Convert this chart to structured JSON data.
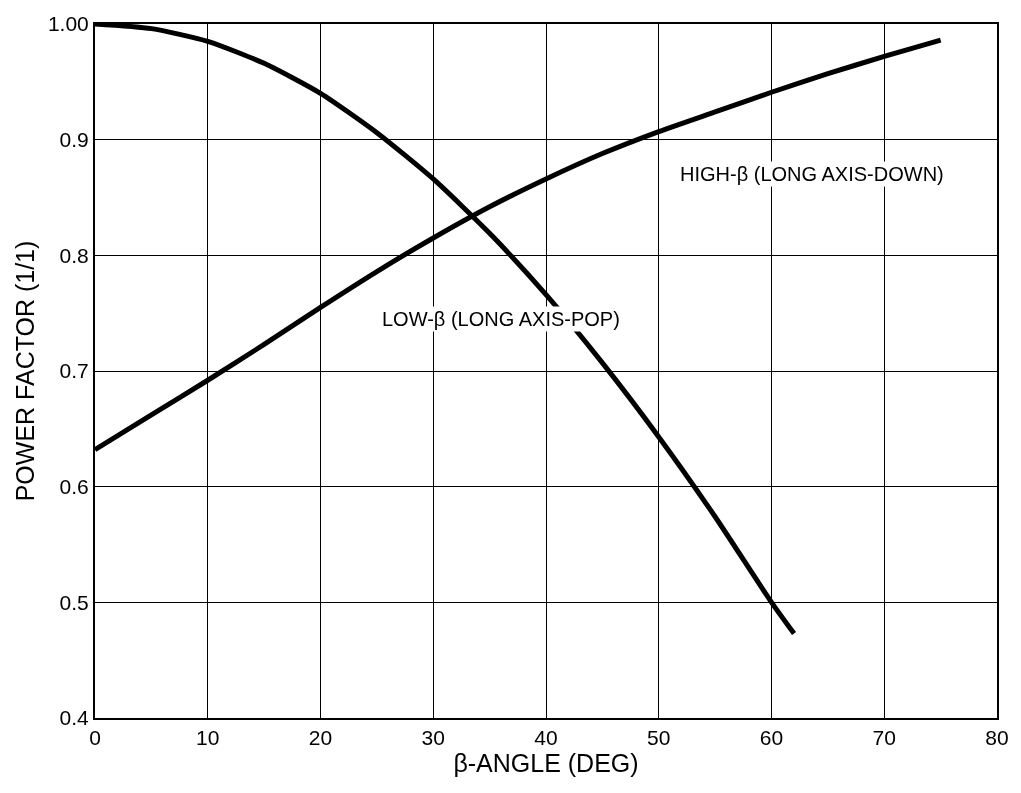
{
  "chart_data": {
    "type": "line",
    "xlabel": "β-ANGLE (DEG)",
    "ylabel": "POWER FACTOR (1/1)",
    "xlim": [
      0,
      80
    ],
    "xticks": [
      0,
      10,
      20,
      30,
      40,
      50,
      60,
      70,
      80
    ],
    "ylim": [
      0.4,
      1.0
    ],
    "yticks": [
      0.4,
      0.5,
      0.6,
      0.7,
      0.8,
      0.9,
      {
        "value": 1.0,
        "label": "1.00"
      }
    ],
    "grid": true,
    "marker": "none",
    "line_style": "solid",
    "series": [
      {
        "name": "LOW-β (LONG AXIS-POP)",
        "color": "#000000",
        "x": [
          0,
          5,
          10,
          15,
          20,
          25,
          30,
          35,
          40,
          45,
          50,
          55,
          60,
          62
        ],
        "values": [
          1.0,
          0.996,
          0.985,
          0.966,
          0.94,
          0.906,
          0.866,
          0.819,
          0.766,
          0.707,
          0.643,
          0.574,
          0.5,
          0.473
        ]
      },
      {
        "name": "HIGH-β (LONG AXIS-DOWN)",
        "color": "#000000",
        "x": [
          0,
          5,
          10,
          15,
          20,
          25,
          30,
          35,
          40,
          45,
          50,
          55,
          60,
          65,
          70,
          75
        ],
        "values": [
          0.632,
          0.662,
          0.692,
          0.723,
          0.755,
          0.786,
          0.815,
          0.842,
          0.866,
          0.888,
          0.907,
          0.924,
          0.941,
          0.957,
          0.972,
          0.986
        ]
      }
    ]
  }
}
